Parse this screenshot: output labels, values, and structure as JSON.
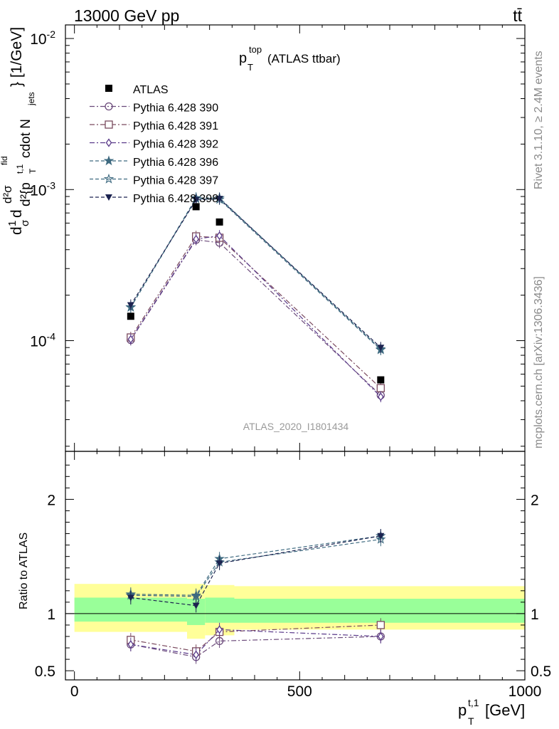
{
  "header": {
    "left": "13000 GeV pp",
    "right": "tt̄"
  },
  "side_labels": {
    "rivet": "Rivet 3.1.10, ≥ 2.4M events",
    "mcplots": "mcplots.cern.ch [arXiv:1306.3436]"
  },
  "title": {
    "main": "p",
    "sup": "top",
    "sub": "T",
    "rest": "(ATLAS ttbar)"
  },
  "watermark": "ATLAS_2020_I1801434",
  "y_label_main": "d²σⁿᶠ / d²{p_T^{t,1} cdot N_jets} [1/GeV]",
  "y_label_parts": {
    "a": "d",
    "b": "1",
    "c": "σ",
    "d": "d",
    "e": "d²σ",
    "f": "fid",
    "g": "d²{p",
    "h": "t,1",
    "i": "T",
    "j": "cdot N",
    "k": "jets",
    "l": "} [1/GeV]"
  },
  "ratio_ylabel": "Ratio to ATLAS",
  "x_label": {
    "main": "p",
    "sup": "t,1",
    "sub": "T",
    "unit": "[GeV]"
  },
  "chart_data": [
    {
      "type": "line",
      "panel": "main",
      "yscale": "log",
      "xlim": [
        -20,
        1000
      ],
      "ylim": [
        1.85e-05,
        0.0123
      ],
      "y_tick_labels": [
        "10^-2",
        "10^-3",
        "10^-4"
      ],
      "x": [
        125,
        270,
        322,
        680
      ],
      "data": {
        "name": "ATLAS",
        "values": [
          0.000145,
          0.00077,
          0.00061,
          5.5e-05
        ]
      },
      "series": [
        {
          "name": "Pythia 6.428 390",
          "marker": "circle",
          "dash": "dashdot",
          "color": "#6b4a7a",
          "values": [
            0.000101,
            0.000465,
            0.000445,
            4.35e-05
          ]
        },
        {
          "name": "Pythia 6.428 391",
          "marker": "square",
          "dash": "dashdot",
          "color": "#7a4a5e",
          "values": [
            0.000105,
            0.00049,
            0.00048,
            4.85e-05
          ]
        },
        {
          "name": "Pythia 6.428 392",
          "marker": "diamond",
          "dash": "dashdot",
          "color": "#5a3a8a",
          "values": [
            0.000102,
            0.00047,
            0.000495,
            4.25e-05
          ]
        },
        {
          "name": "Pythia 6.428 396",
          "marker": "star-filled",
          "dash": "dashed",
          "color": "#3e6a80",
          "values": [
            0.000167,
            0.00088,
            0.00088,
            8.8e-05
          ]
        },
        {
          "name": "Pythia 6.428 397",
          "marker": "star-open",
          "dash": "dashed",
          "color": "#3e6a80",
          "values": [
            0.000166,
            0.00087,
            0.00086,
            8.7e-05
          ]
        },
        {
          "name": "Pythia 6.428 398",
          "marker": "triangle-down",
          "dash": "dashed",
          "color": "#1c2350",
          "values": [
            0.000172,
            0.000855,
            0.00087,
            9e-05
          ]
        }
      ]
    },
    {
      "type": "line",
      "panel": "ratio",
      "ylim": [
        0.42,
        2.42
      ],
      "y_tick_labels": [
        "0.5",
        "1",
        "2"
      ],
      "x_tick_labels": [
        "0",
        "500",
        "1000"
      ],
      "x": [
        125,
        270,
        322,
        680
      ],
      "bands": {
        "bins": [
          [
            0,
            250
          ],
          [
            250,
            290
          ],
          [
            290,
            355
          ],
          [
            355,
            1000
          ]
        ],
        "inner": [
          [
            0.93,
            1.14
          ],
          [
            0.9,
            1.13
          ],
          [
            0.92,
            1.14
          ],
          [
            0.92,
            1.13
          ]
        ],
        "outer": [
          [
            0.84,
            1.26
          ],
          [
            0.78,
            1.26
          ],
          [
            0.81,
            1.25
          ],
          [
            0.86,
            1.24
          ]
        ]
      },
      "series": [
        {
          "name": "Pythia 6.428 390",
          "values": [
            0.73,
            0.62,
            0.76,
            0.8
          ]
        },
        {
          "name": "Pythia 6.428 391",
          "values": [
            0.77,
            0.67,
            0.84,
            0.9
          ]
        },
        {
          "name": "Pythia 6.428 392",
          "values": [
            0.73,
            0.64,
            0.86,
            0.8
          ]
        },
        {
          "name": "Pythia 6.428 396",
          "values": [
            1.17,
            1.16,
            1.48,
            1.68
          ]
        },
        {
          "name": "Pythia 6.428 397",
          "values": [
            1.16,
            1.15,
            1.45,
            1.65
          ]
        },
        {
          "name": "Pythia 6.428 398",
          "values": [
            1.14,
            1.07,
            1.44,
            1.68
          ]
        }
      ]
    }
  ]
}
